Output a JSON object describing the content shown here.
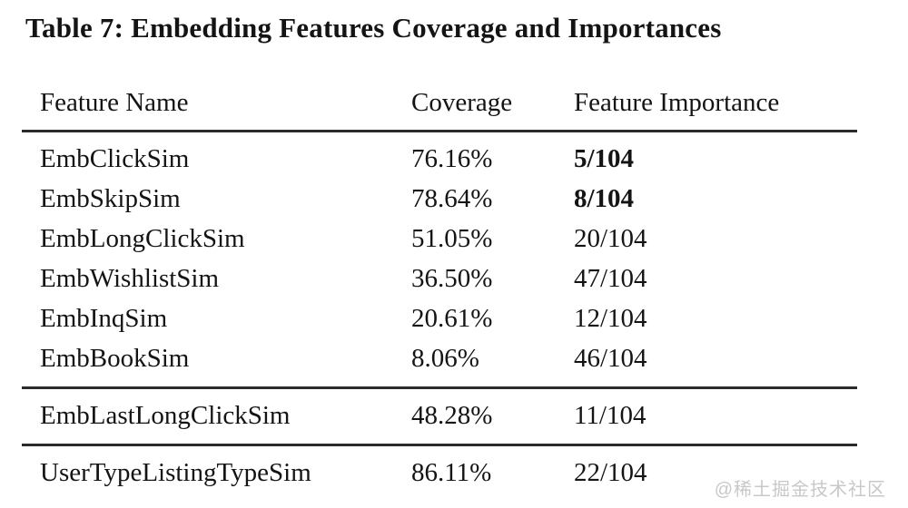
{
  "title": "Table 7: Embedding Features Coverage and Importances",
  "table": {
    "columns": [
      "Feature Name",
      "Coverage",
      "Feature Importance"
    ],
    "groups": [
      {
        "rows": [
          {
            "name": "EmbClickSim",
            "coverage": "76.16%",
            "importance": "5/104",
            "bold": true
          },
          {
            "name": "EmbSkipSim",
            "coverage": "78.64%",
            "importance": "8/104",
            "bold": true
          },
          {
            "name": "EmbLongClickSim",
            "coverage": "51.05%",
            "importance": "20/104",
            "bold": false
          },
          {
            "name": "EmbWishlistSim",
            "coverage": "36.50%",
            "importance": "47/104",
            "bold": false
          },
          {
            "name": "EmbInqSim",
            "coverage": "20.61%",
            "importance": "12/104",
            "bold": false
          },
          {
            "name": "EmbBookSim",
            "coverage": "8.06%",
            "importance": "46/104",
            "bold": false
          }
        ]
      },
      {
        "rows": [
          {
            "name": "EmbLastLongClickSim",
            "coverage": "48.28%",
            "importance": "11/104",
            "bold": false
          }
        ]
      },
      {
        "rows": [
          {
            "name": "UserTypeListingTypeSim",
            "coverage": "86.11%",
            "importance": "22/104",
            "bold": false
          }
        ]
      }
    ]
  },
  "watermark": "@稀土掘金技术社区",
  "colors": {
    "background": "#ffffff",
    "text": "#141414",
    "rule": "#2b2b2b",
    "watermark": "#c8c8c8"
  }
}
